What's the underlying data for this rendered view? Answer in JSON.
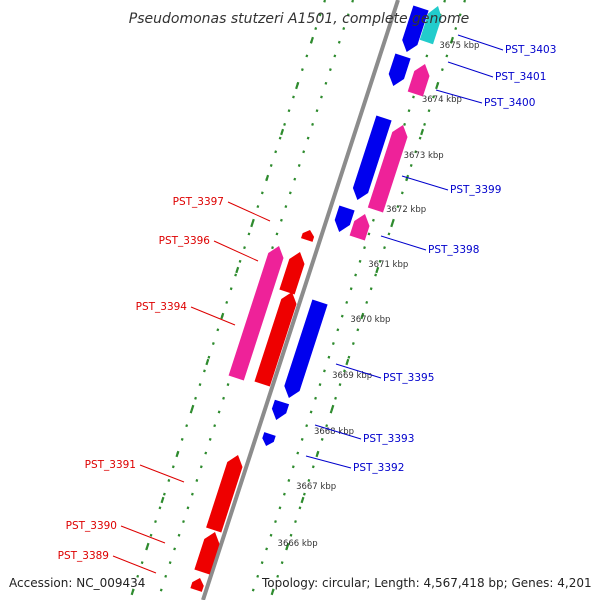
{
  "title": "Pseudomonas stutzeri A1501, complete genome",
  "footer": {
    "accession": "Accession: NC_009434",
    "topology": "Topology: circular; Length: 4,567,418 bp; Genes: 4,201"
  },
  "colors": {
    "backbone": "#8c8c8c",
    "tick_dots": "#2e8b2e",
    "forward_strand_label": "#0000cc",
    "reverse_strand_label": "#dd0000",
    "cds_forward": "#0000ee",
    "cds_reverse": "#ee0000",
    "rna_pink": "#ee2299",
    "rna_cyan": "#22cccc"
  },
  "scale_labels": [
    "3675 kbp",
    "3674 kbp",
    "3673 kbp",
    "3672 kbp",
    "3671 kbp",
    "3670 kbp",
    "3669 kbp",
    "3668 kbp",
    "3667 kbp",
    "3666 kbp"
  ],
  "genes": [
    {
      "label": "PST_3403",
      "strand": "forward"
    },
    {
      "label": "PST_3401",
      "strand": "forward"
    },
    {
      "label": "PST_3400",
      "strand": "forward"
    },
    {
      "label": "PST_3399",
      "strand": "forward"
    },
    {
      "label": "PST_3398",
      "strand": "forward"
    },
    {
      "label": "PST_3395",
      "strand": "forward"
    },
    {
      "label": "PST_3393",
      "strand": "forward"
    },
    {
      "label": "PST_3392",
      "strand": "forward"
    },
    {
      "label": "PST_3397",
      "strand": "reverse"
    },
    {
      "label": "PST_3396",
      "strand": "reverse"
    },
    {
      "label": "PST_3394",
      "strand": "reverse"
    },
    {
      "label": "PST_3391",
      "strand": "reverse"
    },
    {
      "label": "PST_3390",
      "strand": "reverse"
    },
    {
      "label": "PST_3389",
      "strand": "reverse"
    }
  ]
}
